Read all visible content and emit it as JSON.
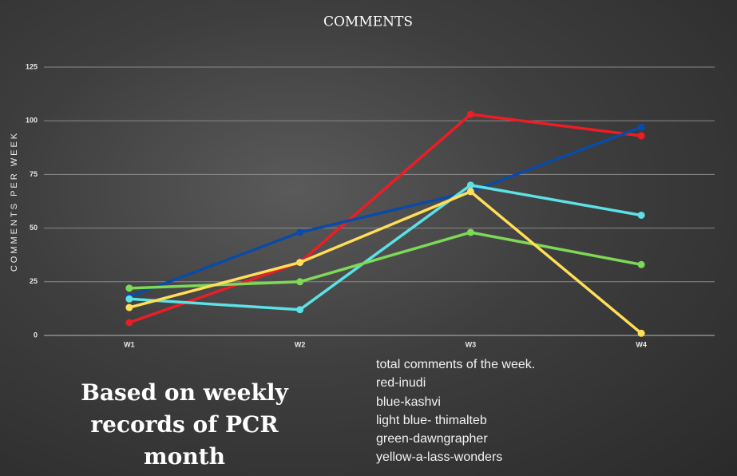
{
  "chart_data": {
    "type": "line",
    "title": "COMMENTS",
    "y_label": "COMMENTS PER WEEK",
    "categories": [
      "W1",
      "W2",
      "W3",
      "W4"
    ],
    "series": [
      {
        "color": "#ee1c24",
        "values": [
          6,
          34,
          103,
          93
        ]
      },
      {
        "color": "#0a4aa8",
        "values": [
          18,
          48,
          67,
          97
        ]
      },
      {
        "color": "#5ce1e6",
        "values": [
          17,
          12,
          70,
          56
        ]
      },
      {
        "color": "#7ed957",
        "values": [
          22,
          25,
          48,
          33
        ]
      },
      {
        "color": "#ffde59",
        "values": [
          13,
          34,
          67,
          1
        ]
      }
    ],
    "ylim": [
      0,
      125
    ],
    "yticks": [
      0,
      25,
      50,
      75,
      100,
      125
    ],
    "grid": true
  },
  "caption": "Based on weekly records of PCR month",
  "notes": [
    "total comments of the week.",
    "red-inudi",
    "blue-kashvi",
    "light blue- thimalteb",
    "green-dawngrapher",
    "yellow-a-lass-wonders"
  ]
}
